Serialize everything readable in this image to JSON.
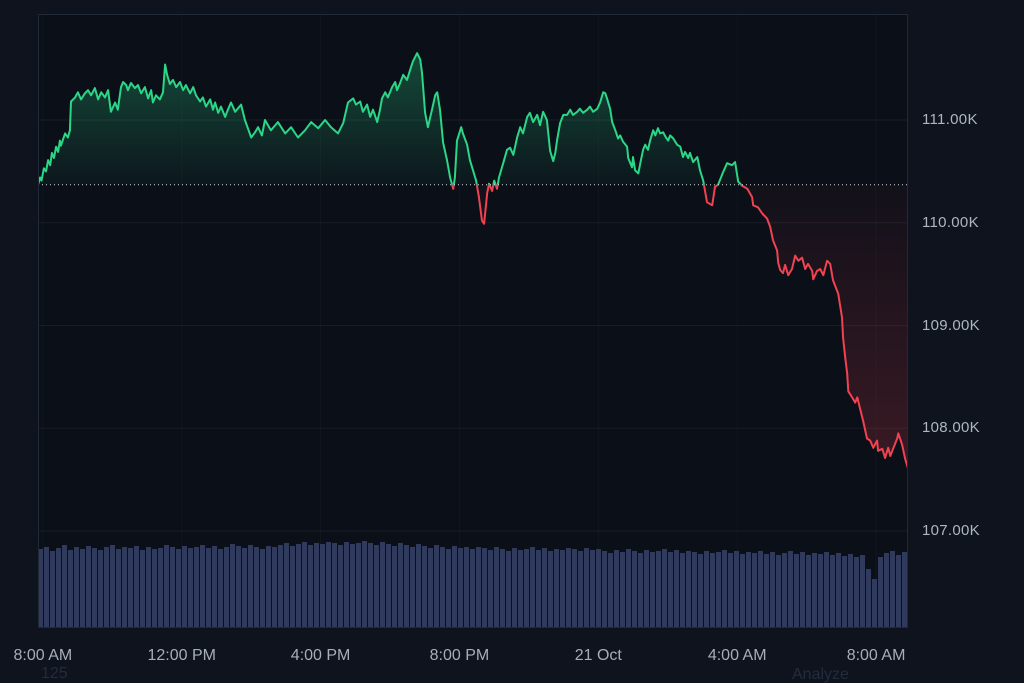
{
  "colors": {
    "page_bg": "#0e131d",
    "plot_bg": "#0b0f18",
    "border": "#1f2938",
    "grid": "rgba(255,255,255,0.055)",
    "grid_vertical": "rgba(255,255,255,0.028)",
    "baseline_dotted": "rgba(232,237,242,0.9)",
    "price_up": "#2bd687",
    "price_down": "#f04351",
    "up_fill_top": "rgba(43,214,135,0.30)",
    "up_fill_bottom": "rgba(43,214,135,0.04)",
    "down_fill_top": "rgba(240,67,81,0.03)",
    "down_fill_bottom": "rgba(240,67,81,0.24)",
    "volume_bar": "#2f3a5d",
    "axis_text": "#aeb6c3",
    "faint_text": "#232c3f"
  },
  "annotations": {
    "bottom_left": "125",
    "bottom_right": "Analyze"
  },
  "chart_data": {
    "type": "line",
    "subtype": "baseline-price-chart-with-volume",
    "title": "",
    "baseline_value": 110.37,
    "y_axis": {
      "unit": "K",
      "ticks": [
        {
          "v": 111,
          "label": "111.00K"
        },
        {
          "v": 110,
          "label": "110.00K"
        },
        {
          "v": 109,
          "label": "109.00K"
        },
        {
          "v": 108,
          "label": "108.00K"
        },
        {
          "v": 107,
          "label": "107.00K"
        }
      ]
    },
    "x_axis": {
      "t_max": 25.06,
      "ticks": [
        {
          "t": 0.14,
          "label": "8:00 AM"
        },
        {
          "t": 4.14,
          "label": "12:00 PM"
        },
        {
          "t": 8.14,
          "label": "4:00 PM"
        },
        {
          "t": 12.14,
          "label": "8:00 PM"
        },
        {
          "t": 16.14,
          "label": "21 Oct"
        },
        {
          "t": 20.14,
          "label": "4:00 AM"
        },
        {
          "t": 24.14,
          "label": "8:00 AM"
        }
      ]
    },
    "price_series": {
      "name": "price",
      "points": [
        [
          0,
          110.37
        ],
        [
          0.06,
          110.44
        ],
        [
          0.1,
          110.41
        ],
        [
          0.17,
          110.53
        ],
        [
          0.23,
          110.5
        ],
        [
          0.29,
          110.61
        ],
        [
          0.35,
          110.56
        ],
        [
          0.4,
          110.68
        ],
        [
          0.46,
          110.63
        ],
        [
          0.52,
          110.74
        ],
        [
          0.58,
          110.69
        ],
        [
          0.63,
          110.8
        ],
        [
          0.66,
          110.75
        ],
        [
          0.78,
          110.87
        ],
        [
          0.86,
          110.83
        ],
        [
          0.92,
          110.9
        ],
        [
          0.95,
          111.18
        ],
        [
          1.07,
          111.22
        ],
        [
          1.15,
          111.27
        ],
        [
          1.24,
          111.2
        ],
        [
          1.35,
          111.26
        ],
        [
          1.44,
          111.29
        ],
        [
          1.53,
          111.24
        ],
        [
          1.64,
          111.31
        ],
        [
          1.73,
          111.2
        ],
        [
          1.82,
          111.27
        ],
        [
          1.93,
          111.22
        ],
        [
          2.02,
          111.29
        ],
        [
          2.1,
          111.08
        ],
        [
          2.22,
          111.17
        ],
        [
          2.3,
          111.1
        ],
        [
          2.39,
          111.32
        ],
        [
          2.45,
          111.37
        ],
        [
          2.54,
          111.34
        ],
        [
          2.59,
          111.29
        ],
        [
          2.68,
          111.36
        ],
        [
          2.79,
          111.31
        ],
        [
          2.88,
          111.34
        ],
        [
          2.97,
          111.26
        ],
        [
          3.08,
          111.32
        ],
        [
          3.17,
          111.21
        ],
        [
          3.26,
          111.29
        ],
        [
          3.31,
          111.17
        ],
        [
          3.4,
          111.24
        ],
        [
          3.51,
          111.2
        ],
        [
          3.6,
          111.27
        ],
        [
          3.66,
          111.54
        ],
        [
          3.72,
          111.44
        ],
        [
          3.8,
          111.35
        ],
        [
          3.89,
          111.39
        ],
        [
          3.98,
          111.32
        ],
        [
          4.09,
          111.37
        ],
        [
          4.18,
          111.29
        ],
        [
          4.26,
          111.34
        ],
        [
          4.38,
          111.26
        ],
        [
          4.47,
          111.32
        ],
        [
          4.55,
          111.24
        ],
        [
          4.67,
          111.18
        ],
        [
          4.75,
          111.22
        ],
        [
          4.84,
          111.13
        ],
        [
          4.96,
          111.2
        ],
        [
          5.04,
          111.1
        ],
        [
          5.1,
          111.17
        ],
        [
          5.19,
          111.07
        ],
        [
          5.27,
          111.13
        ],
        [
          5.39,
          111.03
        ],
        [
          5.47,
          111.1
        ],
        [
          5.56,
          111.17
        ],
        [
          5.68,
          111.08
        ],
        [
          5.85,
          111.15
        ],
        [
          5.96,
          111.0
        ],
        [
          6.14,
          110.83
        ],
        [
          6.25,
          110.88
        ],
        [
          6.34,
          110.93
        ],
        [
          6.45,
          110.85
        ],
        [
          6.54,
          111.0
        ],
        [
          6.71,
          110.9
        ],
        [
          6.91,
          110.98
        ],
        [
          7.12,
          110.87
        ],
        [
          7.29,
          110.93
        ],
        [
          7.49,
          110.83
        ],
        [
          7.69,
          110.9
        ],
        [
          7.87,
          110.98
        ],
        [
          8.07,
          110.92
        ],
        [
          8.27,
          111.0
        ],
        [
          8.44,
          110.93
        ],
        [
          8.64,
          110.87
        ],
        [
          8.79,
          110.97
        ],
        [
          8.93,
          111.17
        ],
        [
          9.08,
          111.21
        ],
        [
          9.16,
          111.15
        ],
        [
          9.28,
          111.18
        ],
        [
          9.36,
          111.08
        ],
        [
          9.48,
          111.15
        ],
        [
          9.57,
          111.03
        ],
        [
          9.65,
          111.1
        ],
        [
          9.77,
          110.98
        ],
        [
          9.85,
          111.1
        ],
        [
          9.91,
          111.21
        ],
        [
          10.0,
          111.27
        ],
        [
          10.08,
          111.22
        ],
        [
          10.2,
          111.32
        ],
        [
          10.29,
          111.37
        ],
        [
          10.34,
          111.29
        ],
        [
          10.43,
          111.36
        ],
        [
          10.52,
          111.44
        ],
        [
          10.63,
          111.39
        ],
        [
          10.72,
          111.49
        ],
        [
          10.8,
          111.57
        ],
        [
          10.92,
          111.65
        ],
        [
          11.01,
          111.59
        ],
        [
          11.06,
          111.46
        ],
        [
          11.15,
          111.07
        ],
        [
          11.23,
          110.93
        ],
        [
          11.35,
          111.1
        ],
        [
          11.44,
          111.24
        ],
        [
          11.5,
          111.27
        ],
        [
          11.58,
          111.1
        ],
        [
          11.67,
          110.78
        ],
        [
          11.78,
          110.61
        ],
        [
          11.87,
          110.44
        ],
        [
          11.96,
          110.33
        ],
        [
          12.01,
          110.44
        ],
        [
          12.07,
          110.8
        ],
        [
          12.19,
          110.93
        ],
        [
          12.24,
          110.87
        ],
        [
          12.36,
          110.76
        ],
        [
          12.44,
          110.61
        ],
        [
          12.53,
          110.51
        ],
        [
          12.62,
          110.41
        ],
        [
          12.7,
          110.25
        ],
        [
          12.79,
          110.02
        ],
        [
          12.85,
          109.99
        ],
        [
          12.94,
          110.29
        ],
        [
          12.99,
          110.38
        ],
        [
          13.08,
          110.31
        ],
        [
          13.14,
          110.41
        ],
        [
          13.22,
          110.33
        ],
        [
          13.28,
          110.44
        ],
        [
          13.4,
          110.58
        ],
        [
          13.51,
          110.71
        ],
        [
          13.6,
          110.73
        ],
        [
          13.69,
          110.66
        ],
        [
          13.8,
          110.83
        ],
        [
          13.89,
          110.93
        ],
        [
          13.97,
          110.87
        ],
        [
          14.09,
          111.03
        ],
        [
          14.17,
          111.07
        ],
        [
          14.26,
          110.98
        ],
        [
          14.38,
          111.05
        ],
        [
          14.46,
          110.95
        ],
        [
          14.55,
          111.08
        ],
        [
          14.66,
          111.0
        ],
        [
          14.75,
          110.7
        ],
        [
          14.84,
          110.6
        ],
        [
          14.9,
          110.68
        ],
        [
          14.95,
          110.8
        ],
        [
          15.04,
          110.97
        ],
        [
          15.13,
          111.05
        ],
        [
          15.24,
          111.05
        ],
        [
          15.33,
          111.1
        ],
        [
          15.41,
          111.05
        ],
        [
          15.53,
          111.08
        ],
        [
          15.61,
          111.11
        ],
        [
          15.7,
          111.07
        ],
        [
          15.82,
          111.1
        ],
        [
          15.9,
          111.13
        ],
        [
          15.99,
          111.08
        ],
        [
          16.11,
          111.11
        ],
        [
          16.19,
          111.17
        ],
        [
          16.28,
          111.27
        ],
        [
          16.34,
          111.26
        ],
        [
          16.39,
          111.21
        ],
        [
          16.48,
          111.11
        ],
        [
          16.54,
          110.98
        ],
        [
          16.63,
          110.9
        ],
        [
          16.71,
          110.82
        ],
        [
          16.77,
          110.85
        ],
        [
          16.85,
          110.79
        ],
        [
          16.97,
          110.74
        ],
        [
          17.0,
          110.63
        ],
        [
          17.11,
          110.54
        ],
        [
          17.14,
          110.64
        ],
        [
          17.2,
          110.51
        ],
        [
          17.29,
          110.48
        ],
        [
          17.35,
          110.58
        ],
        [
          17.43,
          110.71
        ],
        [
          17.49,
          110.76
        ],
        [
          17.57,
          110.71
        ],
        [
          17.63,
          110.8
        ],
        [
          17.72,
          110.9
        ],
        [
          17.78,
          110.85
        ],
        [
          17.86,
          110.92
        ],
        [
          17.92,
          110.87
        ],
        [
          18.01,
          110.88
        ],
        [
          18.07,
          110.84
        ],
        [
          18.15,
          110.8
        ],
        [
          18.21,
          110.85
        ],
        [
          18.3,
          110.82
        ],
        [
          18.41,
          110.76
        ],
        [
          18.5,
          110.74
        ],
        [
          18.58,
          110.64
        ],
        [
          18.64,
          110.69
        ],
        [
          18.73,
          110.63
        ],
        [
          18.78,
          110.68
        ],
        [
          18.87,
          110.59
        ],
        [
          18.99,
          110.64
        ],
        [
          19.07,
          110.51
        ],
        [
          19.16,
          110.41
        ],
        [
          19.27,
          110.2
        ],
        [
          19.42,
          110.17
        ],
        [
          19.5,
          110.35
        ],
        [
          19.59,
          110.37
        ],
        [
          19.73,
          110.49
        ],
        [
          19.85,
          110.58
        ],
        [
          19.99,
          110.56
        ],
        [
          20.08,
          110.59
        ],
        [
          20.17,
          110.4
        ],
        [
          20.28,
          110.36
        ],
        [
          20.43,
          110.33
        ],
        [
          20.57,
          110.25
        ],
        [
          20.6,
          110.17
        ],
        [
          20.74,
          110.15
        ],
        [
          20.86,
          110.09
        ],
        [
          21.0,
          110.04
        ],
        [
          21.09,
          109.96
        ],
        [
          21.17,
          109.83
        ],
        [
          21.29,
          109.73
        ],
        [
          21.32,
          109.61
        ],
        [
          21.38,
          109.54
        ],
        [
          21.46,
          109.51
        ],
        [
          21.52,
          109.59
        ],
        [
          21.61,
          109.49
        ],
        [
          21.72,
          109.55
        ],
        [
          21.81,
          109.68
        ],
        [
          21.9,
          109.63
        ],
        [
          22.01,
          109.66
        ],
        [
          22.1,
          109.55
        ],
        [
          22.18,
          109.6
        ],
        [
          22.3,
          109.53
        ],
        [
          22.33,
          109.45
        ],
        [
          22.44,
          109.53
        ],
        [
          22.53,
          109.55
        ],
        [
          22.62,
          109.49
        ],
        [
          22.73,
          109.63
        ],
        [
          22.82,
          109.6
        ],
        [
          22.9,
          109.44
        ],
        [
          23.05,
          109.31
        ],
        [
          23.16,
          109.08
        ],
        [
          23.19,
          108.88
        ],
        [
          23.25,
          108.69
        ],
        [
          23.31,
          108.53
        ],
        [
          23.34,
          108.36
        ],
        [
          23.45,
          108.3
        ],
        [
          23.54,
          108.25
        ],
        [
          23.6,
          108.3
        ],
        [
          23.68,
          108.19
        ],
        [
          23.77,
          108.07
        ],
        [
          23.88,
          107.9
        ],
        [
          23.97,
          107.88
        ],
        [
          24.06,
          107.81
        ],
        [
          24.17,
          107.88
        ],
        [
          24.2,
          107.78
        ],
        [
          24.32,
          107.8
        ],
        [
          24.4,
          107.71
        ],
        [
          24.49,
          107.81
        ],
        [
          24.55,
          107.73
        ],
        [
          24.63,
          107.8
        ],
        [
          24.75,
          107.9
        ],
        [
          24.78,
          107.95
        ],
        [
          24.89,
          107.84
        ],
        [
          24.98,
          107.7
        ],
        [
          25.06,
          107.61
        ]
      ]
    },
    "volume_series": {
      "name": "volume",
      "relative_heights": [
        78,
        80,
        76,
        79,
        82,
        77,
        80,
        78,
        81,
        79,
        77,
        80,
        82,
        78,
        80,
        79,
        81,
        77,
        80,
        78,
        79,
        82,
        80,
        78,
        81,
        79,
        80,
        82,
        79,
        81,
        78,
        80,
        83,
        81,
        79,
        82,
        80,
        78,
        81,
        80,
        82,
        84,
        81,
        83,
        85,
        82,
        84,
        83,
        85,
        84,
        82,
        85,
        83,
        84,
        86,
        84,
        82,
        85,
        83,
        81,
        84,
        82,
        80,
        83,
        81,
        79,
        82,
        80,
        78,
        81,
        79,
        80,
        78,
        80,
        79,
        77,
        80,
        78,
        76,
        79,
        77,
        78,
        80,
        77,
        79,
        76,
        78,
        77,
        79,
        78,
        76,
        79,
        77,
        78,
        76,
        74,
        77,
        75,
        78,
        76,
        74,
        77,
        75,
        76,
        78,
        75,
        77,
        74,
        76,
        75,
        73,
        76,
        74,
        75,
        77,
        74,
        76,
        73,
        75,
        74,
        76,
        73,
        75,
        72,
        74,
        76,
        73,
        75,
        72,
        74,
        73,
        75,
        72,
        74,
        71,
        73,
        70,
        72,
        58,
        48,
        70,
        74,
        76,
        72,
        75
      ]
    }
  }
}
